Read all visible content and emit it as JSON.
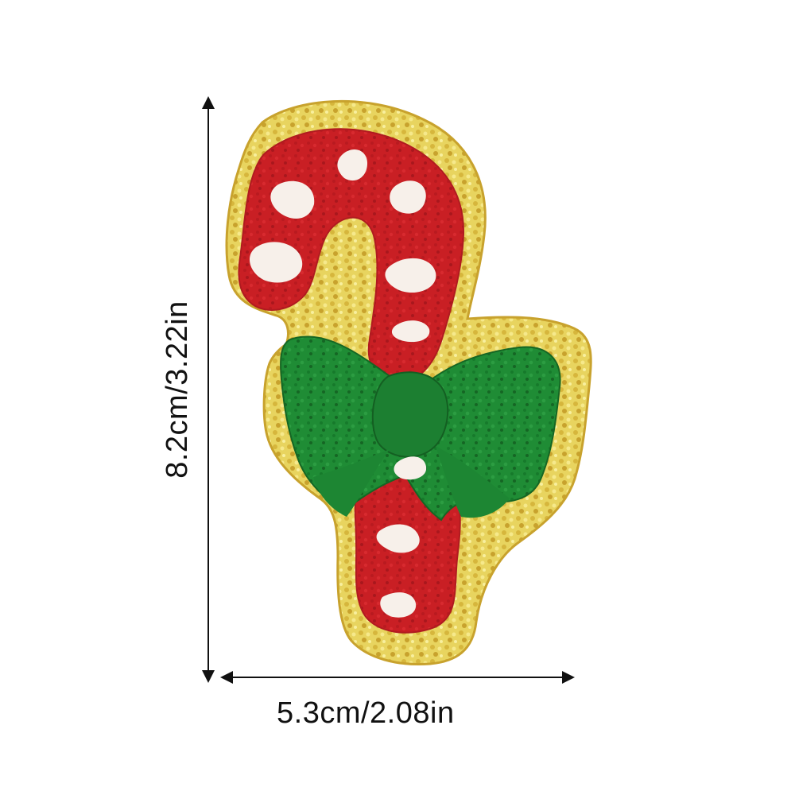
{
  "dimensions": {
    "height_label": "8.2cm/3.22in",
    "width_label": "5.3cm/2.08in"
  },
  "product": {
    "icon": "candy-cane-chenille-patch-icon",
    "colors": {
      "gold_border": "#e7cf5a",
      "gold_dark": "#b99724",
      "cane_red": "#c91f24",
      "cane_white": "#f7f0ea",
      "bow_green": "#1f8c35",
      "bow_green_dark": "#166f29",
      "background": "#ffffff",
      "annotation": "#111111"
    }
  }
}
